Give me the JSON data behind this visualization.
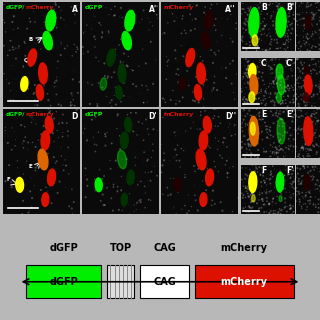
{
  "bg_color": "#0a0a0a",
  "fig_bg": "#b8b8b8",
  "green": "#00ee00",
  "red": "#dd1100",
  "yellow": "#ffff00",
  "orange": "#dd6600",
  "dark_green": "#003300",
  "dark_red": "#220000",
  "white": "#ffffff"
}
